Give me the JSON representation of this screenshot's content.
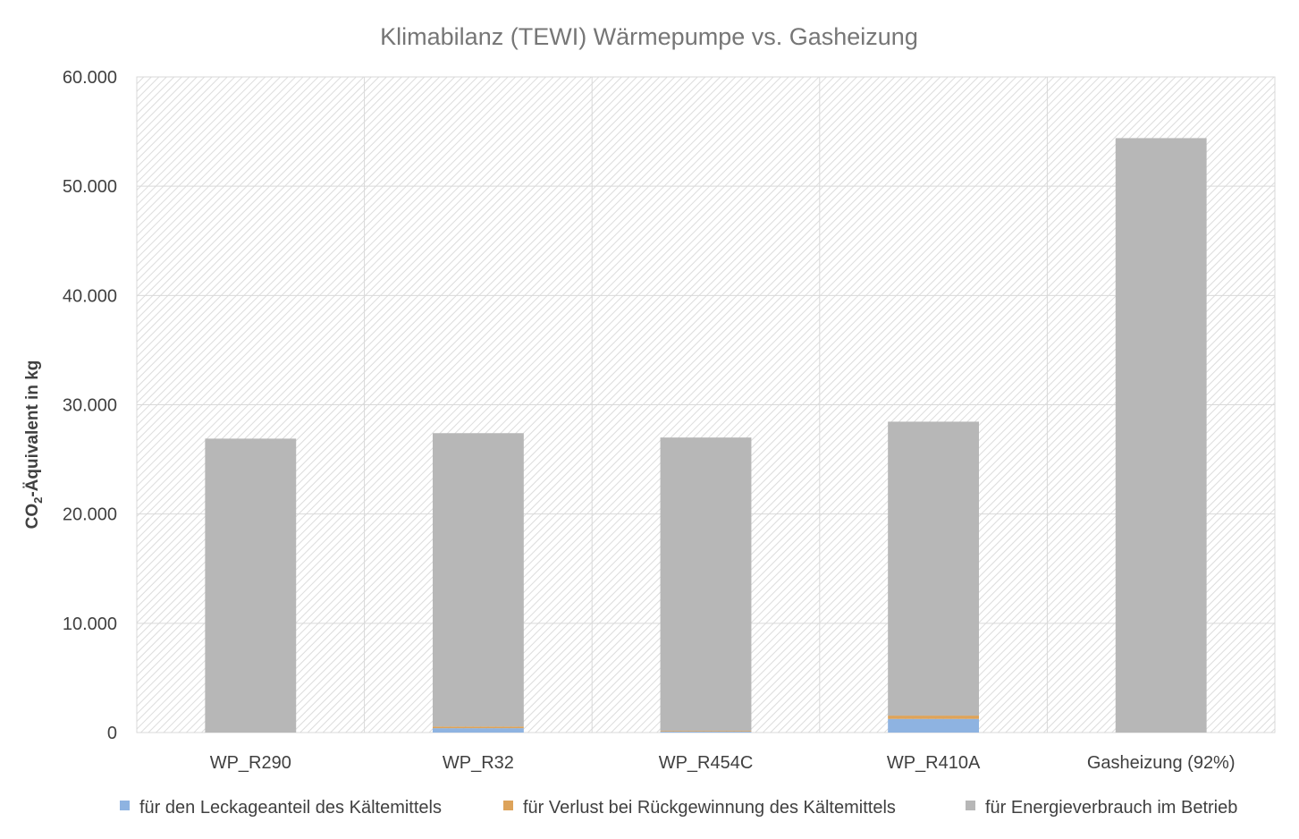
{
  "chart_data": {
    "type": "bar",
    "stacked": true,
    "title": "Klimabilanz (TEWI) Wärmepumpe vs. Gasheizung",
    "ylabel": {
      "main": "CO",
      "sub": "2",
      "rest": "-Äquivalent in kg"
    },
    "xlabel": "",
    "ylim": [
      0,
      60000
    ],
    "yticks": [
      0,
      10000,
      20000,
      30000,
      40000,
      50000,
      60000
    ],
    "ytick_labels": [
      "0",
      "10.000",
      "20.000",
      "30.000",
      "40.000",
      "50.000",
      "60.000"
    ],
    "grid": true,
    "legend_position": "bottom",
    "categories": [
      "WP_R290",
      "WP_R32",
      "WP_R454C",
      "WP_R410A",
      "Gasheizung (92%)"
    ],
    "series": [
      {
        "name": "für den Leckageanteil des Kältemittels",
        "color": "#8eb3e1",
        "values": [
          0,
          400,
          80,
          1250,
          0
        ]
      },
      {
        "name": "für Verlust bei Rückgewinnung des Kältemittels",
        "color": "#dda35a",
        "values": [
          0,
          150,
          70,
          300,
          0
        ]
      },
      {
        "name": "für Energieverbrauch im Betrieb",
        "color": "#b7b7b7",
        "values": [
          26900,
          26850,
          26850,
          26900,
          54400
        ]
      }
    ]
  }
}
